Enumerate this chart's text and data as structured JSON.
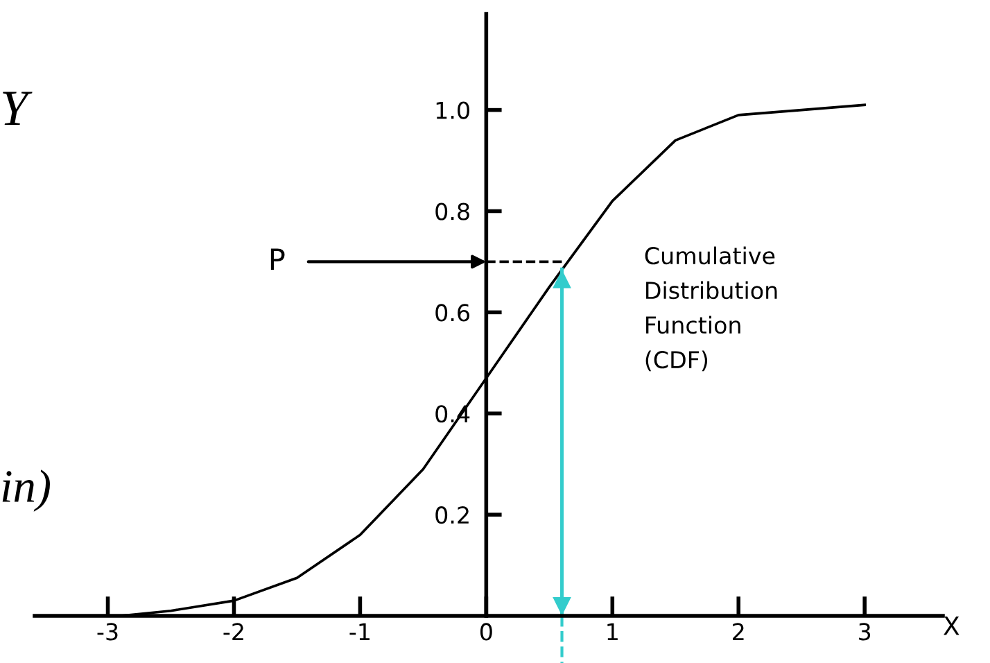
{
  "chart_data": {
    "type": "line",
    "xlabel": "X",
    "x": [
      -2.9,
      -2.5,
      -2,
      -1.5,
      -1,
      -0.5,
      0,
      0.5,
      1,
      1.5,
      2,
      2.5,
      3
    ],
    "series": [
      {
        "color": "#000000",
        "values": [
          0.0,
          0.01,
          0.03,
          0.075,
          0.16,
          0.29,
          0.47,
          0.65,
          0.82,
          0.94,
          0.99,
          1.0,
          1.01
        ]
      }
    ],
    "xlim": [
      -3.58,
      3.62
    ],
    "ylim": [
      0,
      1.19
    ],
    "xticks": [
      -3,
      -2,
      -1,
      0,
      1,
      2,
      3
    ],
    "yticks": [
      {
        "value": 0.2,
        "label": "0.2"
      },
      {
        "value": 0.4,
        "label": "0.4"
      },
      {
        "value": 0.6,
        "label": "0.6"
      },
      {
        "value": 0.8,
        "label": "0.8"
      },
      {
        "value": 1.0,
        "label": "1.0"
      }
    ],
    "ref_lines": [
      {
        "axis": "x",
        "value": 0.6,
        "color": "#33cccc"
      },
      {
        "axis": "y",
        "value": 0.7,
        "color": "#000000",
        "line_style": "dashed"
      }
    ],
    "annotations": [
      "Cumulative\nDistribution\nFunction\n(CDF)",
      {
        "text": "P",
        "x": 0,
        "y": 0.7
      },
      "Y",
      "in)"
    ],
    "grid": false,
    "legend": false,
    "marker": "none",
    "line_style": "solid"
  }
}
